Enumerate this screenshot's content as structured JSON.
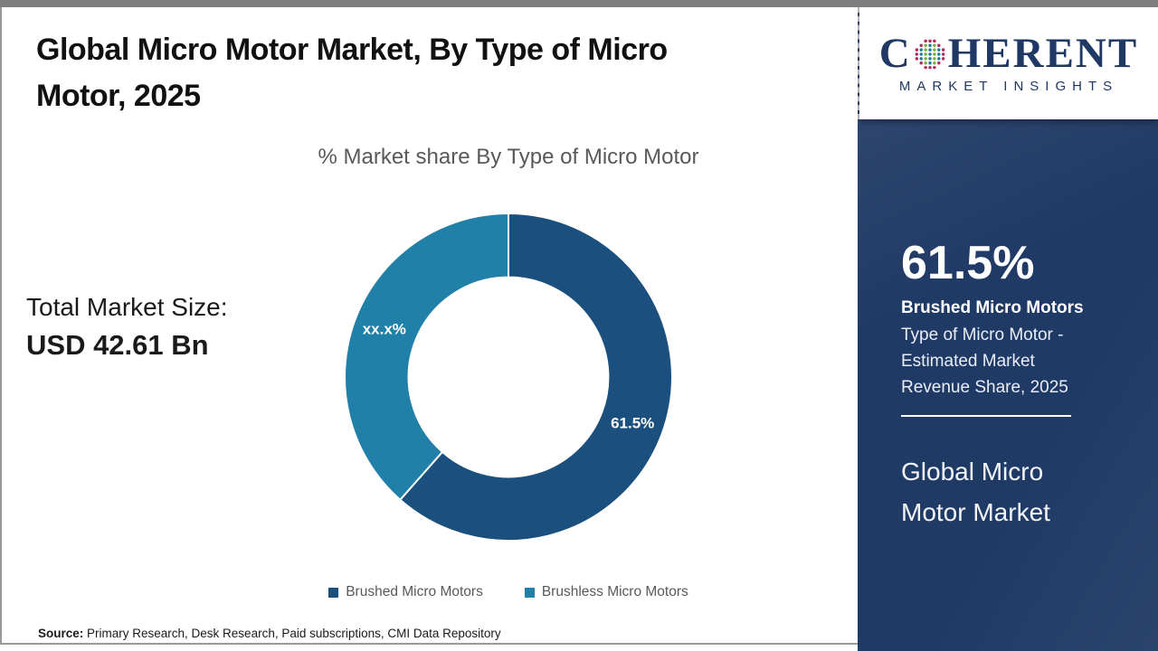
{
  "header": {
    "title_lines": [
      "Global Micro Motor Market, By Type of Micro",
      "Motor, 2025"
    ]
  },
  "chart_data": {
    "type": "pie",
    "title": "% Market share By Type of Micro Motor",
    "categories": [
      "Brushed Micro Motors",
      "Brushless Micro Motors"
    ],
    "values": [
      61.5,
      38.5
    ],
    "slice_labels": [
      "61.5%",
      "xx.x%"
    ],
    "colors": [
      "#1b4f7d",
      "#2080a8"
    ],
    "donut_hole_ratio": 0.61,
    "start_angle_deg": 0,
    "direction": "clockwise",
    "legend_position": "bottom"
  },
  "market_size": {
    "label": "Total Market Size:",
    "value": "USD 42.61 Bn"
  },
  "source": {
    "label": "Source:",
    "text": " Primary Research, Desk Research, Paid subscriptions, CMI Data Repository"
  },
  "sidebar": {
    "logo": {
      "prefix": "C",
      "suffix": "HERENT",
      "subtitle": "MARKET INSIGHTS",
      "navy": "#1f3864",
      "globe_dot_colors": {
        "outer": "#b5265b",
        "teal": "#1d7d95",
        "green": "#7aad3e"
      }
    },
    "stat_value": "61.5%",
    "stat_name": "Brushed Micro Motors",
    "stat_desc_lines": [
      "Type of Micro Motor -",
      "Estimated Market",
      "Revenue Share, 2025"
    ],
    "market_name_lines": [
      "Global Micro",
      "Motor Market"
    ],
    "background_color": "#203a66"
  },
  "frame": {
    "top_bar_color": "#7f7f7f"
  }
}
